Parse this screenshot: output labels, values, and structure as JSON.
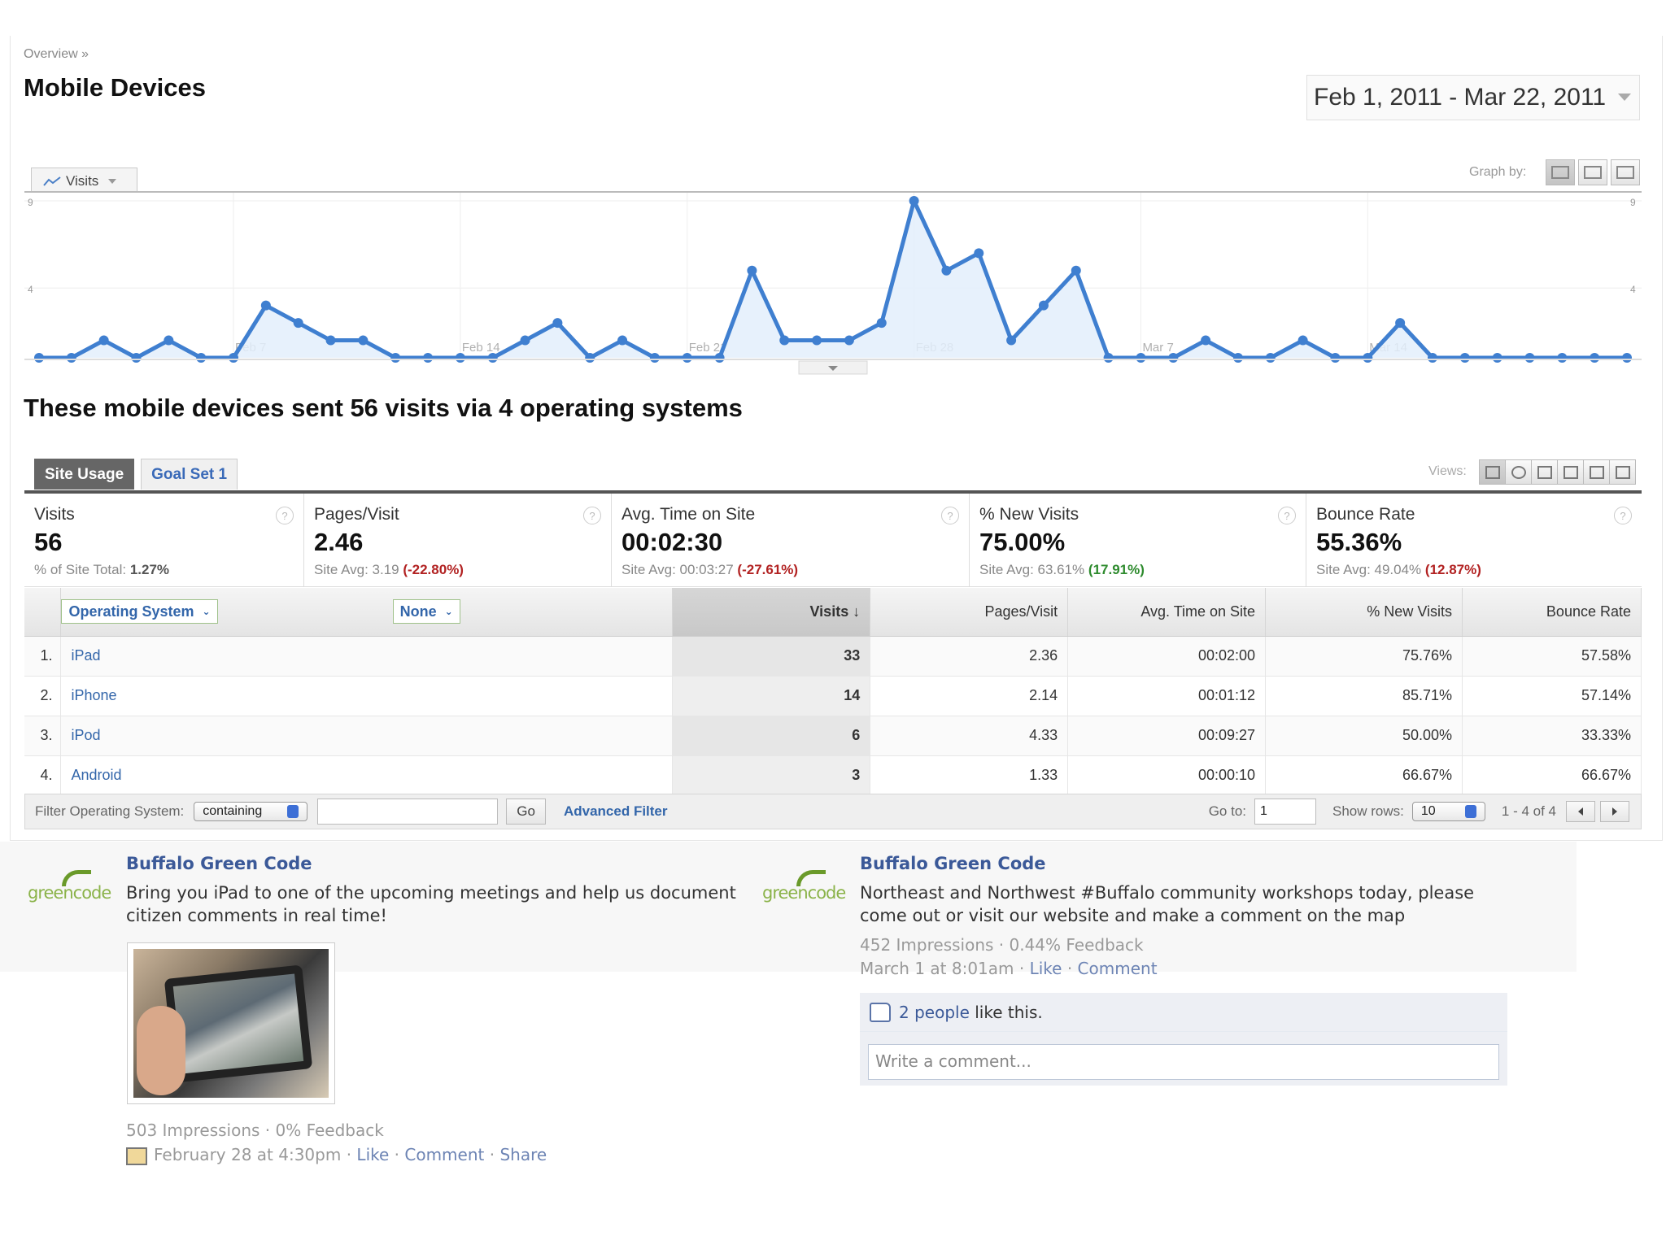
{
  "analytics": {
    "breadcrumb": "Overview »",
    "title": "Mobile Devices",
    "date_range": "Feb 1, 2011 - Mar 22, 2011",
    "metric_selector": "Visits",
    "graph_by_label": "Graph by:",
    "headline": "These mobile devices sent 56 visits via 4 operating systems",
    "tabs": [
      {
        "label": "Site Usage"
      },
      {
        "label": "Goal Set 1"
      }
    ],
    "views_label": "Views:",
    "summary": [
      {
        "label": "Visits",
        "value": "56",
        "avg_prefix": "% of Site Total: ",
        "avg_value": "1.27%",
        "change": ""
      },
      {
        "label": "Pages/Visit",
        "value": "2.46",
        "avg_prefix": "Site Avg: 3.19 ",
        "avg_value": "",
        "change": "(-22.80%)"
      },
      {
        "label": "Avg. Time on Site",
        "value": "00:02:30",
        "avg_prefix": "Site Avg: 00:03:27 ",
        "avg_value": "",
        "change": "(-27.61%)"
      },
      {
        "label": "% New Visits",
        "value": "75.00%",
        "avg_prefix": "Site Avg: 63.61% ",
        "avg_value": "",
        "change": "(17.91%)"
      },
      {
        "label": "Bounce Rate",
        "value": "55.36%",
        "avg_prefix": "Site Avg: 49.04% ",
        "avg_value": "",
        "change": "(12.87%)"
      }
    ],
    "table": {
      "dimension": "Operating System",
      "secondary_dimension": "None",
      "columns": [
        "Visits",
        "Pages/Visit",
        "Avg. Time on Site",
        "% New Visits",
        "Bounce Rate"
      ],
      "rows": [
        {
          "rank": "1.",
          "name": "iPad",
          "visits": "33",
          "pages": "2.36",
          "time": "00:02:00",
          "new": "75.76%",
          "bounce": "57.58%"
        },
        {
          "rank": "2.",
          "name": "iPhone",
          "visits": "14",
          "pages": "2.14",
          "time": "00:01:12",
          "new": "85.71%",
          "bounce": "57.14%"
        },
        {
          "rank": "3.",
          "name": "iPod",
          "visits": "6",
          "pages": "4.33",
          "time": "00:09:27",
          "new": "50.00%",
          "bounce": "33.33%"
        },
        {
          "rank": "4.",
          "name": "Android",
          "visits": "3",
          "pages": "1.33",
          "time": "00:00:10",
          "new": "66.67%",
          "bounce": "66.67%"
        }
      ]
    },
    "filter": {
      "label": "Filter Operating System:",
      "mode": "containing",
      "input_value": "",
      "go_label": "Go",
      "advanced_label": "Advanced Filter",
      "goto_label": "Go to:",
      "goto_value": "1",
      "show_rows_label": "Show rows:",
      "show_rows_value": "10",
      "range_label": "1 - 4 of 4"
    }
  },
  "chart_data": {
    "type": "line",
    "title": "",
    "xlabel": "",
    "ylabel": "",
    "ylim": [
      0,
      9
    ],
    "y_ticks": [
      "9",
      "4"
    ],
    "x_tick_labels": [
      "Feb 7",
      "Feb 14",
      "Feb 21",
      "Feb 28",
      "Mar 7",
      "Mar 14"
    ],
    "x_tick_day_index": [
      6,
      13,
      20,
      27,
      34,
      41
    ],
    "grid": true,
    "series": [
      {
        "values": [
          0,
          0,
          1,
          0,
          1,
          0,
          0,
          3,
          2,
          1,
          1,
          0,
          0,
          0,
          0,
          1,
          2,
          0,
          1,
          0,
          0,
          0,
          5,
          1,
          1,
          1,
          2,
          9,
          5,
          6,
          1,
          3,
          5,
          0,
          0,
          0,
          1,
          0,
          0,
          1,
          0,
          0,
          2,
          0,
          0,
          0,
          0,
          0,
          0,
          0
        ]
      }
    ]
  },
  "posts": [
    {
      "logo_text": "greencode",
      "author": "Buffalo Green Code",
      "message": "Bring you iPad to one of the upcoming meetings and help us document citizen comments in real time!",
      "stats": "503 Impressions · 0% Feedback",
      "date": "February 28 at 4:30pm",
      "actions": [
        "Like",
        "Comment",
        "Share"
      ]
    },
    {
      "logo_text": "greencode",
      "author": "Buffalo Green Code",
      "message": "Northeast and Northwest #Buffalo community workshops today, please come out or visit our website and make a comment on the map",
      "stats": "452 Impressions · 0.44% Feedback",
      "date": "March 1 at 8:01am",
      "actions": [
        "Like",
        "Comment"
      ],
      "likes_link": "2 people",
      "likes_text": " like this.",
      "comment_placeholder": "Write a comment..."
    }
  ],
  "colors": {
    "line": "#3f7fd0",
    "area": "#e3eefb",
    "link": "#3366aa",
    "fb_link": "#3b5998",
    "negative": "#b22222",
    "positive": "#2e8b2e"
  }
}
